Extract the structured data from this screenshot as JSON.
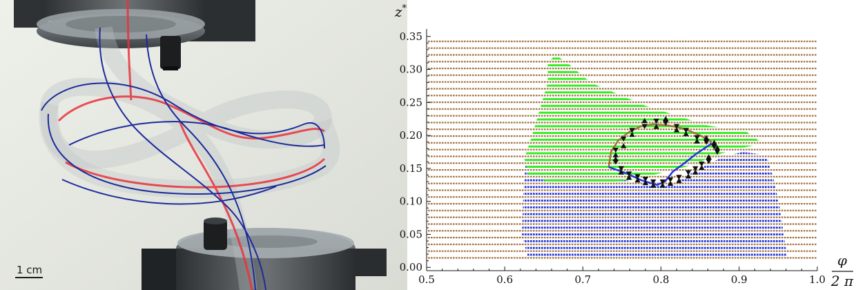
{
  "photo": {
    "scale_bar_label": "1 cm",
    "colors": {
      "background": "#e9ece4",
      "clamp": "#3a3d40",
      "strip": "#b9c0c2",
      "red_line": "#e8323c",
      "blue_line": "#1b2a9a"
    }
  },
  "chart_data": {
    "type": "scatter",
    "xlabel": "φ/2π",
    "ylabel": "z*",
    "xlabel_num": "φ",
    "xlabel_den": "2 π",
    "ylabel_base": "z",
    "ylabel_sup": "*",
    "xlim": [
      0.5,
      1.0
    ],
    "ylim": [
      -0.005,
      0.355
    ],
    "x_ticks": [
      0.5,
      0.6,
      0.7,
      0.8,
      0.9,
      1.0
    ],
    "x_tick_labels": [
      "0.5",
      "0.6",
      "0.7",
      "0.8",
      "0.9",
      "1.0"
    ],
    "y_ticks": [
      0.0,
      0.05,
      0.1,
      0.15,
      0.2,
      0.25,
      0.3,
      0.35
    ],
    "y_tick_labels": [
      "0.00",
      "0.05",
      "0.10",
      "0.15",
      "0.20",
      "0.25",
      "0.30",
      "0.35"
    ],
    "series_colors": {
      "brown": "#a0703c",
      "green": "#33ee22",
      "blue": "#2233dd",
      "marker": "#111111"
    },
    "green_region": [
      [
        0.74,
        0.13
      ],
      [
        0.78,
        0.135
      ],
      [
        0.79,
        0.14
      ],
      [
        0.84,
        0.155
      ],
      [
        0.87,
        0.17
      ],
      [
        0.9,
        0.18
      ],
      [
        0.93,
        0.188
      ],
      [
        0.91,
        0.205
      ],
      [
        0.86,
        0.215
      ],
      [
        0.78,
        0.245
      ],
      [
        0.73,
        0.27
      ],
      [
        0.71,
        0.28
      ],
      [
        0.68,
        0.31
      ],
      [
        0.665,
        0.322
      ],
      [
        0.655,
        0.31
      ],
      [
        0.655,
        0.28
      ],
      [
        0.645,
        0.24
      ],
      [
        0.635,
        0.2
      ],
      [
        0.625,
        0.165
      ],
      [
        0.63,
        0.14
      ],
      [
        0.66,
        0.128
      ],
      [
        0.7,
        0.13
      ]
    ],
    "blue_region": [
      [
        0.628,
        0.175
      ],
      [
        0.66,
        0.16
      ],
      [
        0.7,
        0.155
      ],
      [
        0.76,
        0.13
      ],
      [
        0.82,
        0.13
      ],
      [
        0.85,
        0.15
      ],
      [
        0.88,
        0.168
      ],
      [
        0.905,
        0.175
      ],
      [
        0.935,
        0.17
      ],
      [
        0.945,
        0.13
      ],
      [
        0.952,
        0.09
      ],
      [
        0.957,
        0.05
      ],
      [
        0.962,
        0.012
      ],
      [
        0.63,
        0.012
      ],
      [
        0.622,
        0.05
      ],
      [
        0.624,
        0.12
      ]
    ],
    "brown_curve": [
      [
        0.733,
        0.152
      ],
      [
        0.736,
        0.175
      ],
      [
        0.745,
        0.192
      ],
      [
        0.76,
        0.206
      ],
      [
        0.775,
        0.214
      ],
      [
        0.79,
        0.217
      ],
      [
        0.81,
        0.215
      ],
      [
        0.83,
        0.21
      ],
      [
        0.85,
        0.2
      ],
      [
        0.865,
        0.19
      ]
    ],
    "blue_curve": [
      [
        0.733,
        0.152
      ],
      [
        0.755,
        0.143
      ],
      [
        0.775,
        0.132
      ],
      [
        0.795,
        0.125
      ],
      [
        0.805,
        0.13
      ],
      [
        0.815,
        0.145
      ],
      [
        0.83,
        0.158
      ],
      [
        0.845,
        0.172
      ],
      [
        0.865,
        0.188
      ]
    ],
    "markers_down": [
      [
        0.742,
        0.178
      ],
      [
        0.752,
        0.195
      ],
      [
        0.763,
        0.208
      ],
      [
        0.779,
        0.214
      ],
      [
        0.794,
        0.222
      ],
      [
        0.806,
        0.219
      ],
      [
        0.82,
        0.214
      ],
      [
        0.832,
        0.208
      ],
      [
        0.846,
        0.197
      ],
      [
        0.858,
        0.19
      ],
      [
        0.868,
        0.183
      ],
      [
        0.872,
        0.175
      ],
      [
        0.861,
        0.161
      ],
      [
        0.852,
        0.157
      ],
      [
        0.844,
        0.15
      ],
      [
        0.835,
        0.144
      ],
      [
        0.823,
        0.137
      ],
      [
        0.812,
        0.133
      ],
      [
        0.802,
        0.13
      ],
      [
        0.79,
        0.13
      ],
      [
        0.78,
        0.134
      ],
      [
        0.77,
        0.138
      ],
      [
        0.759,
        0.142
      ],
      [
        0.749,
        0.15
      ],
      [
        0.742,
        0.16
      ]
    ],
    "markers_up": [
      [
        0.742,
        0.164
      ],
      [
        0.752,
        0.184
      ],
      [
        0.763,
        0.201
      ],
      [
        0.779,
        0.222
      ],
      [
        0.794,
        0.213
      ],
      [
        0.806,
        0.225
      ],
      [
        0.82,
        0.208
      ],
      [
        0.832,
        0.202
      ],
      [
        0.846,
        0.191
      ],
      [
        0.858,
        0.196
      ],
      [
        0.868,
        0.189
      ],
      [
        0.872,
        0.181
      ],
      [
        0.861,
        0.167
      ],
      [
        0.852,
        0.151
      ],
      [
        0.844,
        0.144
      ],
      [
        0.835,
        0.138
      ],
      [
        0.823,
        0.131
      ],
      [
        0.812,
        0.127
      ],
      [
        0.802,
        0.124
      ],
      [
        0.79,
        0.124
      ],
      [
        0.78,
        0.128
      ],
      [
        0.77,
        0.132
      ],
      [
        0.759,
        0.136
      ],
      [
        0.749,
        0.144
      ],
      [
        0.742,
        0.17
      ]
    ]
  }
}
